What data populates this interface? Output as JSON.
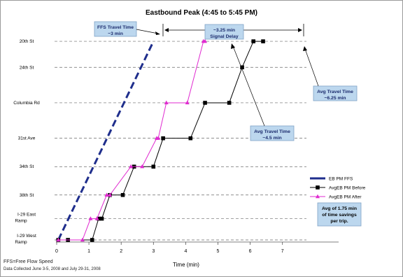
{
  "chart_data": {
    "type": "line",
    "title": "Eastbound Peak (4:45 to 5:45 PM)",
    "xlabel": "Time (min)",
    "ylabel": "",
    "xlim": [
      0,
      7
    ],
    "x_ticks": [
      "0",
      "1",
      "2",
      "3",
      "4",
      "5",
      "6",
      "7"
    ],
    "y_categories": [
      "I-29 West Ramp",
      "I-29 East Ramp",
      "38th St",
      "34th St",
      "31st Ave",
      "Columbia Rd",
      "24th St",
      "20th St"
    ],
    "y_positions": [
      0,
      0.9,
      1.9,
      3.1,
      4.3,
      5.8,
      7.3,
      8.4
    ],
    "grid": "horizontal dashed",
    "legend_position": "right",
    "series": [
      {
        "name": "EB PM FFS",
        "color": "#1f2e8c",
        "style": "dashed-thick",
        "x": [
          0.05,
          3.0
        ],
        "y": [
          0,
          8.4
        ]
      },
      {
        "name": "AvgEB PM Before",
        "color": "#000000",
        "marker": "square",
        "x": [
          0.05,
          0.35,
          1.1,
          1.3,
          1.4,
          1.65,
          2.05,
          2.4,
          3.0,
          3.3,
          4.15,
          4.6,
          5.35,
          5.75,
          6.1,
          6.4
        ],
        "y": [
          0,
          0,
          0,
          0.9,
          0.9,
          1.9,
          1.9,
          3.1,
          3.1,
          4.3,
          4.3,
          5.8,
          5.8,
          7.3,
          8.4,
          8.4
        ]
      },
      {
        "name": "AvgEB PM After",
        "color": "#e02ad0",
        "marker": "triangle",
        "x": [
          0.05,
          0.8,
          1.05,
          1.25,
          1.55,
          1.65,
          2.3,
          2.65,
          3.1,
          3.15,
          3.4,
          4.05,
          4.55,
          4.6
        ],
        "y": [
          0,
          0,
          0.9,
          0.9,
          1.9,
          1.9,
          3.1,
          3.1,
          4.3,
          4.3,
          5.8,
          5.8,
          8.4,
          8.4
        ]
      }
    ],
    "annotations": [
      "FFS Travel Time ~3 min",
      "~3.25 min Signal Delay",
      "Avg Travel Time ~4.5 min",
      "Avg Travel Time ~6.25 min",
      "Avg of 1.75 min of time savings per trip."
    ]
  },
  "footnotes": [
    "FFS=Free Flow Speed",
    "Data Collected June 3-5, 2008 and July 29-31, 2008"
  ]
}
